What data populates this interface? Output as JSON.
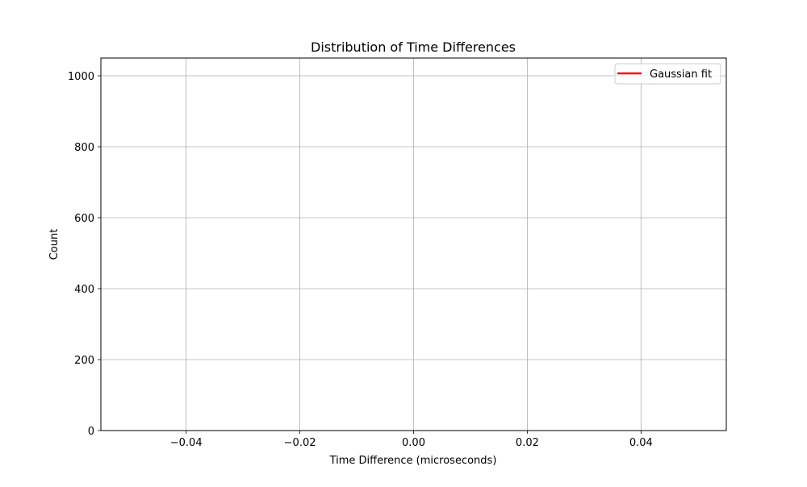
{
  "chart_data": {
    "type": "line",
    "title": "Distribution of Time Differences",
    "xlabel": "Time Difference (microseconds)",
    "ylabel": "Count",
    "xlim": [
      -0.055,
      0.055
    ],
    "ylim": [
      0,
      1050
    ],
    "xticks": [
      -0.04,
      -0.02,
      0.0,
      0.02,
      0.04
    ],
    "xtick_labels": [
      "−0.04",
      "−0.02",
      "0.00",
      "0.02",
      "0.04"
    ],
    "yticks": [
      0,
      200,
      400,
      600,
      800,
      1000
    ],
    "ytick_labels": [
      "0",
      "200",
      "400",
      "600",
      "800",
      "1000"
    ],
    "grid": true,
    "legend_position": "top-right",
    "series": [
      {
        "name": "Gaussian fit",
        "color": "#ff0000",
        "x": [],
        "y": []
      }
    ]
  }
}
